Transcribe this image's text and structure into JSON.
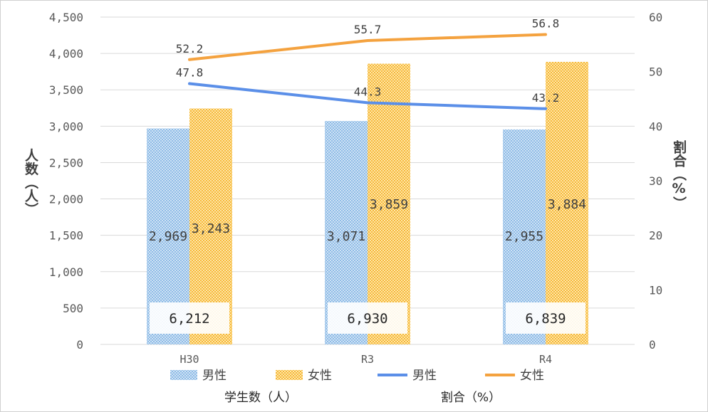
{
  "chart_data": {
    "type": "bar",
    "categories": [
      "H30",
      "R3",
      "R4"
    ],
    "series": [
      {
        "name": "男性",
        "type": "bar",
        "axis": "left",
        "values": [
          2969,
          3071,
          2955
        ],
        "labels": [
          "2,969",
          "3,071",
          "2,955"
        ],
        "color": "#9dc3e6"
      },
      {
        "name": "女性",
        "type": "bar",
        "axis": "left",
        "values": [
          3243,
          3859,
          3884
        ],
        "labels": [
          "3,243",
          "3,859",
          "3,884"
        ],
        "color": "#ffc000"
      },
      {
        "name": "男性",
        "type": "line",
        "axis": "right",
        "values": [
          47.8,
          44.3,
          43.2
        ],
        "labels": [
          "47.8",
          "44.3",
          "43.2"
        ],
        "color": "#5b8fe8"
      },
      {
        "name": "女性",
        "type": "line",
        "axis": "right",
        "values": [
          52.2,
          55.7,
          56.8
        ],
        "labels": [
          "52.2",
          "55.7",
          "56.8"
        ],
        "color": "#f4a23f"
      }
    ],
    "totals": [
      "6,212",
      "6,930",
      "6,839"
    ],
    "ylabel": "人数（人）",
    "y2label": "割合（%）",
    "ylim": [
      0,
      4500
    ],
    "y_ticks": [
      "0",
      "500",
      "1,000",
      "1,500",
      "2,000",
      "2,500",
      "3,000",
      "3,500",
      "4,000",
      "4,500"
    ],
    "y2lim": [
      0,
      60
    ],
    "y2_ticks": [
      "0",
      "10",
      "20",
      "30",
      "40",
      "50",
      "60"
    ],
    "grid": true,
    "legend_position": "bottom",
    "legend_groups": [
      "学生数（人）",
      "割合（%）"
    ]
  }
}
